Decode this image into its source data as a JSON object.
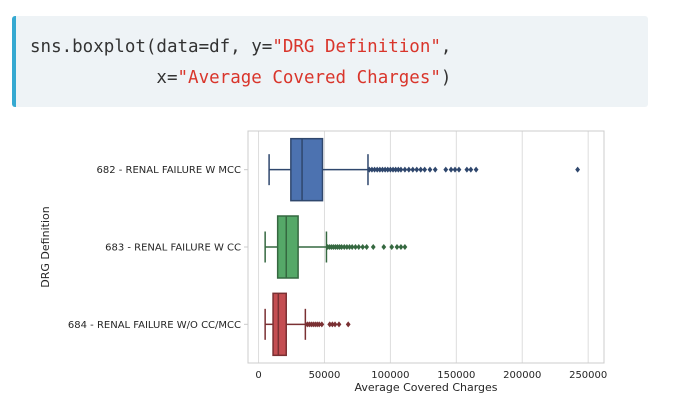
{
  "code_cell": {
    "line1_prefix": "sns.boxplot(data=df, y=",
    "line1_string": "\"DRG Definition\"",
    "line1_suffix": ",",
    "line2_indent": "            x=",
    "line2_string": "\"Average Covered Charges\"",
    "line2_suffix": ")"
  },
  "chart_data": {
    "type": "boxplot",
    "orientation": "horizontal",
    "xlabel": "Average Covered Charges",
    "ylabel": "DRG Definition",
    "xlim": [
      -8000,
      262000
    ],
    "xticks": [
      0,
      50000,
      100000,
      150000,
      200000,
      250000
    ],
    "grid": "vertical",
    "categories": [
      "682 - RENAL FAILURE W MCC",
      "683 - RENAL FAILURE W CC",
      "684 - RENAL FAILURE W/O CC/MCC"
    ],
    "series": [
      {
        "category": "682 - RENAL FAILURE W MCC",
        "color": "#4c72b0",
        "whisker_low": 8000,
        "q1": 24500,
        "median": 33000,
        "q3": 48500,
        "whisker_high": 83000,
        "outliers": [
          84000,
          86000,
          88000,
          90000,
          92000,
          94000,
          96000,
          98000,
          100000,
          102000,
          104000,
          106000,
          108000,
          111000,
          114000,
          117000,
          120000,
          123000,
          126000,
          130000,
          134000,
          142000,
          146000,
          149000,
          152000,
          158000,
          161000,
          165000,
          242000
        ]
      },
      {
        "category": "683 - RENAL FAILURE W CC",
        "color": "#55a868",
        "whisker_low": 5000,
        "q1": 14500,
        "median": 21000,
        "q3": 30000,
        "whisker_high": 51500,
        "outliers": [
          52500,
          54000,
          55500,
          57000,
          58500,
          60000,
          61500,
          63000,
          65000,
          67000,
          69000,
          71000,
          73500,
          76000,
          79000,
          82000,
          87000,
          95000,
          101000,
          105000,
          108000,
          111000
        ]
      },
      {
        "category": "684 - RENAL FAILURE W/O CC/MCC",
        "color": "#c44e52",
        "whisker_low": 5000,
        "q1": 11000,
        "median": 15000,
        "q3": 21000,
        "whisker_high": 35500,
        "outliers": [
          37000,
          38500,
          40000,
          41500,
          43000,
          44500,
          46000,
          48000,
          54000,
          56000,
          58000,
          61000,
          68000
        ]
      }
    ]
  }
}
